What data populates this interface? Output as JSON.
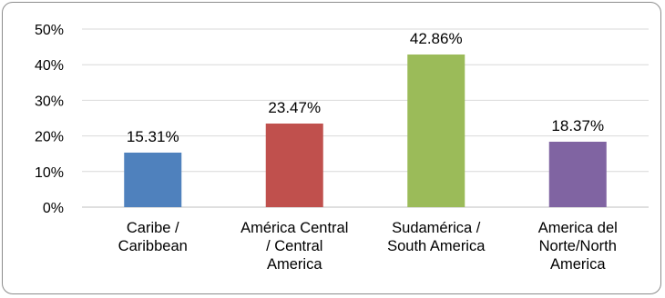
{
  "chart_data": {
    "type": "bar",
    "categories": [
      [
        "Caribe /",
        "Caribbean"
      ],
      [
        "América Central",
        "/ Central",
        "America"
      ],
      [
        "Sudamérica /",
        "South America"
      ],
      [
        "America del",
        "Norte/North",
        "America"
      ]
    ],
    "values": [
      15.31,
      23.47,
      42.86,
      18.37
    ],
    "data_labels": [
      "15.31%",
      "23.47%",
      "42.86%",
      "18.37%"
    ],
    "colors": [
      "#4f81bd",
      "#c0504d",
      "#9bbb59",
      "#8064a2"
    ],
    "yticks": [
      "0%",
      "10%",
      "20%",
      "30%",
      "40%",
      "50%"
    ],
    "ylim": [
      0,
      50
    ],
    "grid": true,
    "legend": "none",
    "title": "",
    "xlabel": "",
    "ylabel": ""
  }
}
